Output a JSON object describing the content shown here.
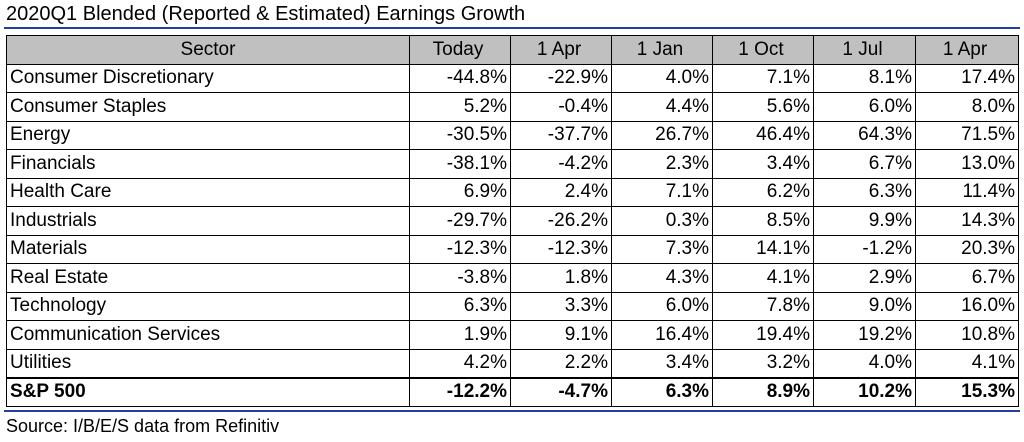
{
  "title": "2020Q1 Blended (Reported & Estimated) Earnings Growth",
  "colors": {
    "rule": "#1f3fa6",
    "header_bg": "#c0c0c0",
    "border": "#000000"
  },
  "table": {
    "headers": [
      "Sector",
      "Today",
      "1 Apr",
      "1 Jan",
      "1 Oct",
      "1 Jul",
      "1 Apr"
    ],
    "rows": [
      [
        "Consumer Discretionary",
        "-44.8%",
        "-22.9%",
        "4.0%",
        "7.1%",
        "8.1%",
        "17.4%"
      ],
      [
        "Consumer Staples",
        "5.2%",
        "-0.4%",
        "4.4%",
        "5.6%",
        "6.0%",
        "8.0%"
      ],
      [
        "Energy",
        "-30.5%",
        "-37.7%",
        "26.7%",
        "46.4%",
        "64.3%",
        "71.5%"
      ],
      [
        "Financials",
        "-38.1%",
        "-4.2%",
        "2.3%",
        "3.4%",
        "6.7%",
        "13.0%"
      ],
      [
        "Health Care",
        "6.9%",
        "2.4%",
        "7.1%",
        "6.2%",
        "6.3%",
        "11.4%"
      ],
      [
        "Industrials",
        "-29.7%",
        "-26.2%",
        "0.3%",
        "8.5%",
        "9.9%",
        "14.3%"
      ],
      [
        "Materials",
        "-12.3%",
        "-12.3%",
        "7.3%",
        "14.1%",
        "-1.2%",
        "20.3%"
      ],
      [
        "Real Estate",
        "-3.8%",
        "1.8%",
        "4.3%",
        "4.1%",
        "2.9%",
        "6.7%"
      ],
      [
        "Technology",
        "6.3%",
        "3.3%",
        "6.0%",
        "7.8%",
        "9.0%",
        "16.0%"
      ],
      [
        "Communication Services",
        "1.9%",
        "9.1%",
        "16.4%",
        "19.4%",
        "19.2%",
        "10.8%"
      ],
      [
        "Utilities",
        "4.2%",
        "2.2%",
        "3.4%",
        "3.2%",
        "4.0%",
        "4.1%"
      ]
    ],
    "total": [
      "S&P 500",
      "-12.2%",
      "-4.7%",
      "6.3%",
      "8.9%",
      "10.2%",
      "15.3%"
    ]
  },
  "source": "Source: I/B/E/S data from Refinitiv"
}
